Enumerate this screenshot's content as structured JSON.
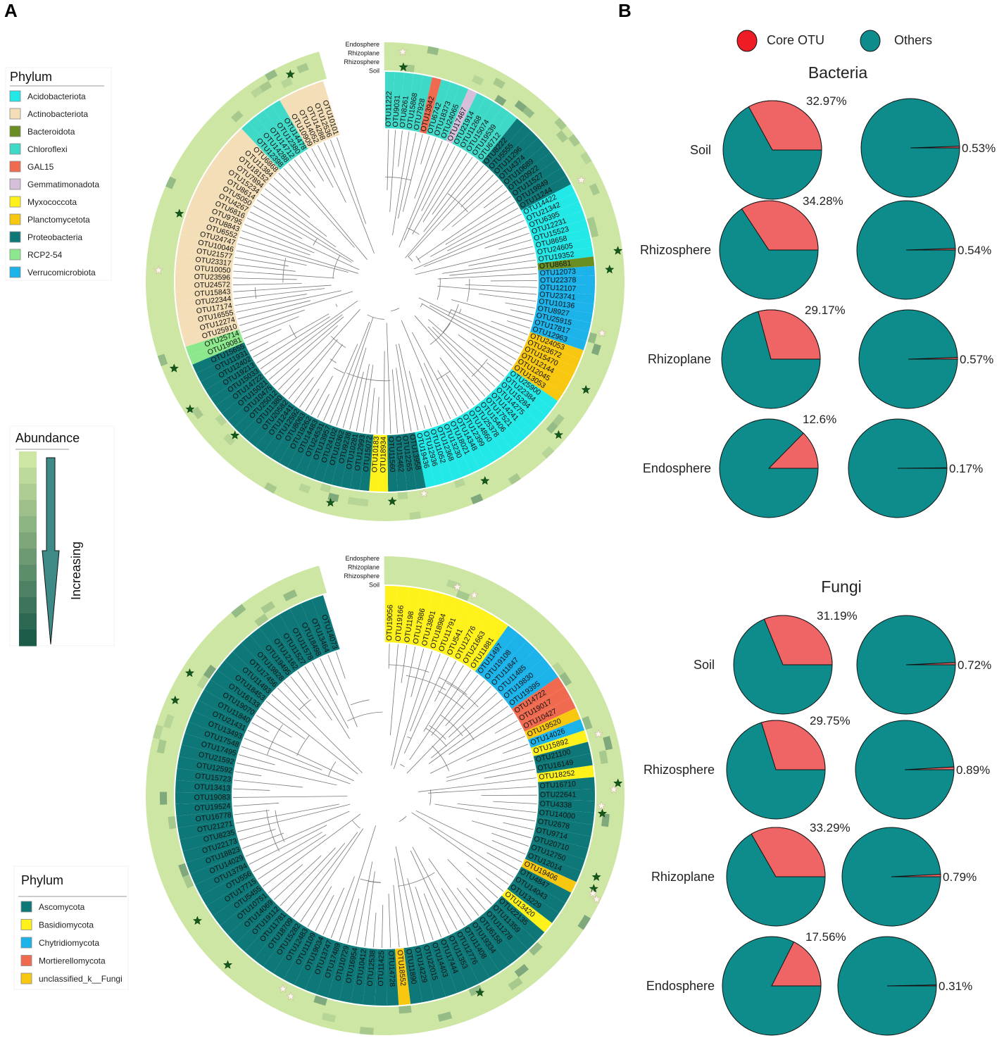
{
  "panel_labels": [
    "A",
    "B"
  ],
  "phylum_legend_bacteria": {
    "title": "Phylum",
    "items": [
      {
        "name": "Acidobacteriota",
        "color": "#22E8E8"
      },
      {
        "name": "Actinobacteriota",
        "color": "#F3DEB8"
      },
      {
        "name": "Bacteroidota",
        "color": "#6B8E23"
      },
      {
        "name": "Chloroflexi",
        "color": "#3FD9C8"
      },
      {
        "name": "GAL15",
        "color": "#F06A50"
      },
      {
        "name": "Gemmatimonadota",
        "color": "#D6BFDA"
      },
      {
        "name": "Myxococcota",
        "color": "#FFF21A"
      },
      {
        "name": "Planctomycetota",
        "color": "#F8C810"
      },
      {
        "name": "Proteobacteria",
        "color": "#0E7777"
      },
      {
        "name": "RCP2-54",
        "color": "#8CE88C"
      },
      {
        "name": "Verrucomicrobiota",
        "color": "#1CB2EA"
      }
    ]
  },
  "phylum_legend_fungi": {
    "title": "Phylum",
    "items": [
      {
        "name": "Ascomycota",
        "color": "#0E7777"
      },
      {
        "name": "Basidiomycota",
        "color": "#FFF21A"
      },
      {
        "name": "Chytridiomycota",
        "color": "#1CB2EA"
      },
      {
        "name": "Mortierellomycota",
        "color": "#F06A50"
      },
      {
        "name": "unclassified_k__Fungi",
        "color": "#F8C810"
      }
    ]
  },
  "abundance_legend": {
    "title": "Abundance",
    "arrow_label": "Increasing",
    "colors": [
      "#CDE6A4",
      "#BDDA9C",
      "#ADCD93",
      "#9DC08B",
      "#8DB483",
      "#7DA77B",
      "#6D9A73",
      "#5D8E6B",
      "#4D8163",
      "#3D745B",
      "#2D6853",
      "#1D5B4B"
    ]
  },
  "ring_labels": [
    "Endosphere",
    "Rhizoplane",
    "Rhizosphere",
    "Soil"
  ],
  "bacteria_tree": {
    "otus": [
      "OTU11222",
      "OTU9031",
      "OTU8261",
      "OTU15868",
      "OTU7928",
      "OTU13942",
      "OTU6742",
      "OTU18373",
      "OTU24065",
      "OTU17467",
      "OTU21914",
      "OTU11268",
      "OTU15074",
      "OTU19539",
      "OTU6712",
      "OTU8222",
      "OTU5555",
      "OTU11296",
      "OTU4374",
      "OTU10689",
      "OTU20922",
      "OTU11527",
      "OTU19849",
      "OTU11244",
      "OTU14422",
      "OTU21342",
      "OTU6395",
      "OTU12231",
      "OTU15523",
      "OTU8658",
      "OTU24605",
      "OTU19352",
      "OTU8681",
      "OTU12073",
      "OTU22378",
      "OTU12107",
      "OTU23741",
      "OTU10136",
      "OTU8927",
      "OTU25915",
      "OTU17817",
      "OTU12963",
      "OTU24053",
      "OTU23672",
      "OTU15470",
      "OTU12144",
      "OTU12045",
      "OTU13053",
      "OTU25900",
      "OTU22384",
      "OTU15284",
      "OTU14275",
      "OTU14241",
      "OTU17521",
      "OTU15406",
      "OTU25378",
      "OTU14860",
      "OTU12399",
      "OTU14348",
      "OTU18021",
      "OTU13230",
      "OTU12368",
      "OTU11052",
      "OTU12936",
      "OTU19436",
      "OTU13958",
      "OTU12265",
      "OTU15462",
      "OTU11560",
      "OTU18934",
      "OTU10183",
      "OTU15072",
      "OTU12993",
      "OTU10281",
      "OTU9238",
      "OTU10362",
      "OTU24102",
      "OTU13957",
      "OTU24531",
      "OTU14483",
      "OTU19262",
      "OTU8063",
      "OTU12592",
      "OTU12441",
      "OTU20582",
      "OTU11380",
      "OTU25012",
      "OTU10475",
      "OTU15021",
      "OTU14722",
      "OTU15033",
      "OTU19213",
      "OTU12402",
      "OTU11931",
      "OTU15655",
      "OTU19081",
      "OTU25714",
      "OTU25910",
      "OTU12274",
      "OTU16555",
      "OTU17174",
      "OTU22344",
      "OTU15843",
      "OTU24572",
      "OTU23596",
      "OTU10050",
      "OTU23317",
      "OTU21577",
      "OTU10046",
      "OTU24747",
      "OTU6552",
      "OTU8843",
      "OTU9795",
      "OTU6816",
      "OTU4267",
      "OTU5050",
      "OTU8614",
      "OTU15234",
      "OTU7894",
      "OTU18152",
      "OTU11384",
      "OTU6868",
      "OTU12398",
      "OTU14288",
      "OTU14712",
      "OTU12380",
      "OTU14478",
      "OTU10909",
      "OTU14052",
      "OTU14288",
      "OTU12536",
      "OTU10101"
    ],
    "phyla": [
      "Ch",
      "Ch",
      "Ch",
      "Ch",
      "Ch",
      "GA",
      "Ch",
      "Ch",
      "Ch",
      "Ge",
      "Ch",
      "Ch",
      "Ch",
      "Ch",
      "Ch",
      "Pr",
      "Pr",
      "Pr",
      "Pr",
      "Pr",
      "Pr",
      "Pr",
      "Pr",
      "Pr",
      "Ac",
      "Ac",
      "Ac",
      "Ac",
      "Ac",
      "Ac",
      "Ac",
      "Ac",
      "Ba",
      "Ve",
      "Ve",
      "Ve",
      "Ve",
      "Ve",
      "Ve",
      "Ve",
      "Ve",
      "Ve",
      "Pl",
      "Pl",
      "Pl",
      "Pl",
      "Pl",
      "Pl",
      "Ac",
      "Ac",
      "Ac",
      "Ac",
      "Ac",
      "Ac",
      "Ac",
      "Ac",
      "Ac",
      "Ac",
      "Ac",
      "Ac",
      "Ac",
      "Ac",
      "Ac",
      "Ac",
      "Ac",
      "Pr",
      "Pr",
      "Pr",
      "Pr",
      "My",
      "My",
      "Pr",
      "Pr",
      "Pr",
      "Pr",
      "Pr",
      "Pr",
      "Pr",
      "Pr",
      "Pr",
      "Pr",
      "Pr",
      "Pr",
      "Pr",
      "Pr",
      "Pr",
      "Pr",
      "Pr",
      "Pr",
      "Pr",
      "Pr",
      "Pr",
      "Pr",
      "Pr",
      "Pr",
      "RC",
      "RC",
      "At",
      "At",
      "At",
      "At",
      "At",
      "At",
      "At",
      "At",
      "At",
      "At",
      "At",
      "At",
      "At",
      "At",
      "At",
      "At",
      "At",
      "At",
      "At",
      "At",
      "At",
      "At",
      "At",
      "At",
      "At",
      "Ch",
      "Ch",
      "Ch",
      "Ch",
      "Ch",
      "At",
      "At",
      "At",
      "At",
      "At",
      "At"
    ]
  },
  "fungi_tree": {
    "otus": [
      "OTU19056",
      "OTU19166",
      "OTU1198",
      "OTU17986",
      "OTU13801",
      "OTU18984",
      "OTU11791",
      "OTU541",
      "OTU12776",
      "OTU21663",
      "OTU11881",
      "OTU11497",
      "OTU19108",
      "OTU11847",
      "OTU11485",
      "OTU19830",
      "OTU19395",
      "OTU14722",
      "OTU19017",
      "OTU10427",
      "OTU19520",
      "OTU14026",
      "OTU15892",
      "OTU21100",
      "OTU16149",
      "OTU18252",
      "OTU16710",
      "OTU22641",
      "OTU4338",
      "OTU14000",
      "OTU2678",
      "OTU9714",
      "OTU20710",
      "OTU12750",
      "OTU12014",
      "OTU19406",
      "OTU4847",
      "OTU14043",
      "OTU13229",
      "OTU13420",
      "OTU22135",
      "OTU11359",
      "OTU11278",
      "OTU6158",
      "OTU19334",
      "OTU11408",
      "OTU12776",
      "OTU11353",
      "OTU17444",
      "OTU14403",
      "OTU22015",
      "OTU14229",
      "OTU11890",
      "OTU18552",
      "OTU14728",
      "OTU11425",
      "OTU12538",
      "OTU10412",
      "OTU16954",
      "OTU10729",
      "OTU17489",
      "OTU13747",
      "OTU19034",
      "OTU11109",
      "OTU12483",
      "OTU15282",
      "OTU18709",
      "OTU11781",
      "OTU19112",
      "OTU14069",
      "OTU10751",
      "OTU5455",
      "OTU17715",
      "OTU556",
      "OTU13794",
      "OTU14029",
      "OTU18823",
      "OTU22173",
      "OTU8235",
      "OTU21271",
      "OTU16778",
      "OTU19524",
      "OTU19083",
      "OTU13413",
      "OTU15723",
      "OTU12592",
      "OTU21592",
      "OTU17495",
      "OTU17548",
      "OTU13493",
      "OTU21431",
      "OTU11840",
      "OTU19070",
      "OTU16133",
      "OTU18453",
      "OTU11493",
      "OTU17456",
      "OTU19828",
      "OTU19495",
      "OTU12162",
      "OTU11527",
      "OTU11578",
      "OTU18498",
      "OTU13464",
      "OTU14073"
    ],
    "phyla": [
      "Ba",
      "Ba",
      "Ba",
      "Ba",
      "Ba",
      "Ba",
      "Ba",
      "Ba",
      "Ba",
      "Ba",
      "Ba",
      "Ch",
      "Ch",
      "Ch",
      "Ch",
      "Ch",
      "Ch",
      "Mo",
      "Mo",
      "Mo",
      "Un",
      "Ch",
      "Ba",
      "As",
      "As",
      "Ba",
      "As",
      "As",
      "As",
      "As",
      "As",
      "As",
      "As",
      "As",
      "As",
      "Un",
      "As",
      "As",
      "As",
      "Ba",
      "As",
      "As",
      "As",
      "As",
      "As",
      "As",
      "As",
      "As",
      "As",
      "As",
      "As",
      "As",
      "As",
      "Un",
      "As",
      "As",
      "As",
      "As",
      "As",
      "As",
      "As",
      "As",
      "As",
      "As",
      "As",
      "As",
      "As",
      "As",
      "As",
      "As",
      "As",
      "As",
      "As",
      "As",
      "As",
      "As",
      "As",
      "As",
      "As",
      "As",
      "As",
      "As",
      "As",
      "As",
      "As",
      "As",
      "As",
      "As",
      "As",
      "As",
      "As",
      "As",
      "As",
      "As",
      "As",
      "As",
      "As",
      "As",
      "As",
      "As",
      "As",
      "As",
      "As",
      "As",
      "As"
    ]
  },
  "chart_data": [
    {
      "type": "pie",
      "title": "Bacteria",
      "legend": [
        {
          "label": "Core OTU",
          "color": "#EE1C24"
        },
        {
          "label": "Others",
          "color": "#0E8C8C"
        }
      ],
      "slice_color": "#EF6464",
      "other_color": "#0E8C8C",
      "rows": [
        {
          "label": "Soil",
          "left_pct": 32.97,
          "right_pct": 0.53,
          "left_text": "32.97%",
          "right_text": "0.53%"
        },
        {
          "label": "Rhizosphere",
          "left_pct": 34.28,
          "right_pct": 0.54,
          "left_text": "34.28%",
          "right_text": "0.54%"
        },
        {
          "label": "Rhizoplane",
          "left_pct": 29.17,
          "right_pct": 0.57,
          "left_text": "29.17%",
          "right_text": "0.57%"
        },
        {
          "label": "Endosphere",
          "left_pct": 12.6,
          "right_pct": 0.17,
          "left_text": "12.6%",
          "right_text": "0.17%"
        }
      ]
    },
    {
      "type": "pie",
      "title": "Fungi",
      "slice_color": "#EF6464",
      "other_color": "#0E8C8C",
      "rows": [
        {
          "label": "Soil",
          "left_pct": 31.19,
          "right_pct": 0.72,
          "left_text": "31.19%",
          "right_text": "0.72%"
        },
        {
          "label": "Rhizosphere",
          "left_pct": 29.75,
          "right_pct": 0.89,
          "left_text": "29.75%",
          "right_text": "0.89%"
        },
        {
          "label": "Rhizoplane",
          "left_pct": 33.29,
          "right_pct": 0.79,
          "left_text": "33.29%",
          "right_text": "0.79%"
        },
        {
          "label": "Endosphere",
          "left_pct": 17.56,
          "right_pct": 0.31,
          "left_text": "17.56%",
          "right_text": "0.31%"
        }
      ]
    }
  ]
}
